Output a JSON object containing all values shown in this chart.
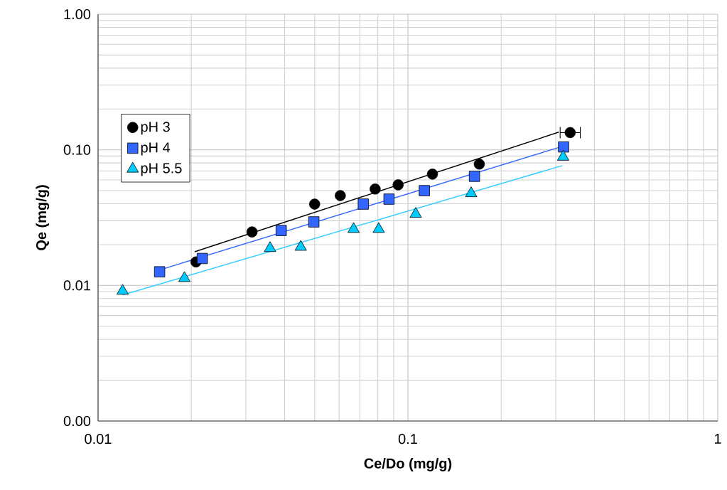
{
  "chart_data": {
    "type": "scatter",
    "xlabel": "Ce/Do (mg/g)",
    "ylabel": "Qe (mg/g)",
    "log": "xy",
    "grid": true,
    "legend": "left",
    "xlim": [
      0.01,
      1
    ],
    "ylim": [
      0.001,
      1
    ],
    "xticks": [
      0.01,
      0.1,
      1
    ],
    "yticks": [
      {
        "value": 0.001,
        "label": "0.00"
      },
      {
        "value": 0.01,
        "label": "0.01"
      },
      {
        "value": 0.1,
        "label": "0.10"
      },
      {
        "value": 1,
        "label": "1.00"
      }
    ],
    "series": [
      {
        "name": "pH 3",
        "marker": "circle",
        "color": "#000000",
        "x": [
          0.0207,
          0.0314,
          0.05,
          0.0605,
          0.0784,
          0.093,
          0.12,
          0.17,
          0.334
        ],
        "values": [
          0.0149,
          0.0248,
          0.0398,
          0.046,
          0.0514,
          0.0552,
          0.0662,
          0.0785,
          0.134
        ],
        "xerrors": [
          null,
          null,
          null,
          null,
          null,
          null,
          null,
          null,
          [
            0.31,
            0.36
          ]
        ]
      },
      {
        "name": "pH 4",
        "marker": "square",
        "color": "#3366ff",
        "x": [
          0.0158,
          0.0217,
          0.039,
          0.0497,
          0.0718,
          0.0869,
          0.113,
          0.164,
          0.318
        ],
        "values": [
          0.0126,
          0.0158,
          0.0254,
          0.0294,
          0.0398,
          0.0433,
          0.05,
          0.0638,
          0.105
        ]
      },
      {
        "name": "pH 5.5",
        "marker": "triangle",
        "color": "#00ccff",
        "x": [
          0.012,
          0.019,
          0.0359,
          0.0451,
          0.0668,
          0.0805,
          0.106,
          0.16,
          0.317
        ],
        "values": [
          0.0091,
          0.0113,
          0.0188,
          0.0192,
          0.026,
          0.026,
          0.0336,
          0.0477,
          0.0886
        ]
      },
      {
        "type": "line",
        "color": "#000000",
        "x": [
          0.0205,
          0.307
        ],
        "values": [
          0.0177,
          0.135
        ]
      },
      {
        "type": "line",
        "color": "#3366ff",
        "x": [
          0.0158,
          0.315
        ],
        "values": [
          0.013,
          0.106
        ]
      },
      {
        "type": "line",
        "color": "#33ccff",
        "x": [
          0.012,
          0.315
        ],
        "values": [
          0.0085,
          0.0765
        ]
      }
    ]
  }
}
